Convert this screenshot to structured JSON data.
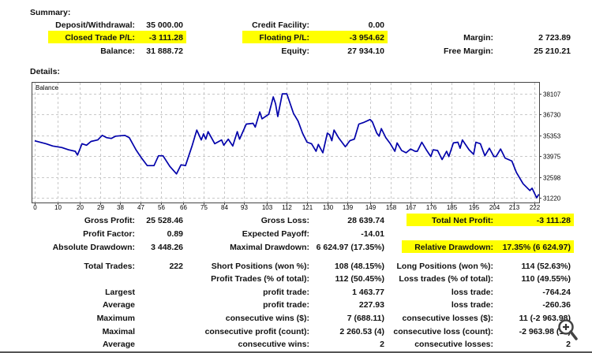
{
  "summary": {
    "title": "Summary:",
    "rows": [
      [
        {
          "label": "Deposit/Withdrawal:",
          "value": "35 000.00"
        },
        {
          "label": "Credit Facility:",
          "value": "0.00"
        },
        {
          "label": "",
          "value": ""
        }
      ],
      [
        {
          "label": "Closed Trade P/L:",
          "value": "-3 111.28",
          "highlight": true
        },
        {
          "label": "Floating P/L:",
          "value": "-3 954.62",
          "highlight": true
        },
        {
          "label": "Margin:",
          "value": "2 723.89"
        }
      ],
      [
        {
          "label": "Balance:",
          "value": "31 888.72"
        },
        {
          "label": "Equity:",
          "value": "27 934.10"
        },
        {
          "label": "Free Margin:",
          "value": "25 210.21"
        }
      ]
    ]
  },
  "details": {
    "title": "Details:",
    "rows": [
      [
        {
          "label": "Gross Profit:",
          "value": "25 528.46"
        },
        {
          "label": "Gross Loss:",
          "value": "28 639.74"
        },
        {
          "label": "Total Net Profit:",
          "value": "-3 111.28",
          "highlight": true
        }
      ],
      [
        {
          "label": "Profit Factor:",
          "value": "0.89"
        },
        {
          "label": "Expected Payoff:",
          "value": "-14.01"
        },
        {
          "label": "",
          "value": ""
        }
      ],
      [
        {
          "label": "Absolute Drawdown:",
          "value": "3 448.26"
        },
        {
          "label": "Maximal Drawdown:",
          "value": "6 624.97 (17.35%)"
        },
        {
          "label": "Relative Drawdown:",
          "value": "17.35% (6 624.97)",
          "highlight": true
        }
      ],
      [
        {
          "label": "Total Trades:",
          "value": "222"
        },
        {
          "label": "Short Positions (won %):",
          "value": "108 (48.15%)"
        },
        {
          "label": "Long Positions (won %):",
          "value": "114 (52.63%)"
        }
      ],
      [
        {
          "label": "",
          "value": ""
        },
        {
          "label": "Profit Trades (% of total):",
          "value": "112 (50.45%)"
        },
        {
          "label": "Loss trades (% of total):",
          "value": "110 (49.55%)"
        }
      ],
      [
        {
          "label": "Largest",
          "value": ""
        },
        {
          "label": "profit trade:",
          "value": "1 463.77"
        },
        {
          "label": "loss trade:",
          "value": "-764.24"
        }
      ],
      [
        {
          "label": "Average",
          "value": ""
        },
        {
          "label": "profit trade:",
          "value": "227.93"
        },
        {
          "label": "loss trade:",
          "value": "-260.36"
        }
      ],
      [
        {
          "label": "Maximum",
          "value": ""
        },
        {
          "label": "consecutive wins ($):",
          "value": "7 (688.11)"
        },
        {
          "label": "consecutive losses ($):",
          "value": "11 (-2 963.98)"
        }
      ],
      [
        {
          "label": "Maximal",
          "value": ""
        },
        {
          "label": "consecutive profit (count):",
          "value": "2 260.53 (4)"
        },
        {
          "label": "consecutive loss (count):",
          "value": "-2 963.98 (11)"
        }
      ],
      [
        {
          "label": "Average",
          "value": ""
        },
        {
          "label": "consecutive wins:",
          "value": "2"
        },
        {
          "label": "consecutive losses:",
          "value": "2"
        }
      ]
    ]
  },
  "chart_data": {
    "type": "line",
    "title": "Balance",
    "xlabel": "",
    "ylabel": "",
    "xlim": [
      0,
      224
    ],
    "ylim": [
      31220,
      38107
    ],
    "x_ticks": [
      0,
      10,
      20,
      29,
      38,
      47,
      56,
      66,
      75,
      84,
      93,
      103,
      112,
      121,
      130,
      139,
      149,
      158,
      167,
      176,
      185,
      195,
      204,
      213,
      222
    ],
    "y_ticks": [
      38107,
      36730,
      35353,
      33975,
      32598,
      31220
    ],
    "grid": true,
    "color": "#0000aa",
    "series": [
      {
        "name": "Balance",
        "x": [
          0,
          5,
          8,
          12,
          15,
          18,
          19,
          21,
          23,
          25,
          28,
          30,
          32,
          34,
          36,
          40,
          42,
          45,
          47,
          50,
          53,
          55,
          57,
          60,
          63,
          65,
          67,
          70,
          72,
          74,
          75,
          76,
          77,
          80,
          83,
          84,
          86,
          88,
          90,
          91,
          94,
          97,
          98,
          100,
          101,
          104,
          106,
          107,
          108,
          110,
          112,
          115,
          117,
          119,
          121,
          123,
          125,
          126,
          128,
          130,
          131,
          132,
          133,
          135,
          138,
          140,
          142,
          144,
          146,
          149,
          150,
          152,
          153,
          154,
          156,
          158,
          160,
          161,
          163,
          165,
          167,
          169,
          170,
          172,
          174,
          176,
          177,
          179,
          181,
          183,
          184,
          186,
          188,
          189,
          190,
          193,
          195,
          196,
          198,
          200,
          202,
          204,
          205,
          207,
          209,
          212,
          214,
          217,
          220,
          221,
          223,
          224
        ],
        "values": [
          34990,
          34800,
          34650,
          34550,
          34400,
          34300,
          34050,
          34800,
          34700,
          34950,
          35050,
          35350,
          35200,
          35150,
          35300,
          35350,
          35200,
          34400,
          33950,
          33350,
          33350,
          34000,
          34000,
          33300,
          32800,
          33400,
          33350,
          34700,
          35700,
          35050,
          35450,
          35100,
          35600,
          34800,
          35050,
          34700,
          35100,
          34650,
          35600,
          35100,
          36100,
          36150,
          35900,
          36900,
          36450,
          36750,
          37900,
          37450,
          36600,
          38100,
          38100,
          36800,
          36300,
          35500,
          34900,
          34800,
          34300,
          34750,
          34200,
          35500,
          35400,
          35000,
          35700,
          35200,
          34600,
          35000,
          35100,
          36100,
          36200,
          36400,
          36250,
          35500,
          35300,
          35800,
          35200,
          34800,
          34300,
          34850,
          34350,
          34200,
          34450,
          34300,
          34300,
          34900,
          34400,
          33950,
          34400,
          34350,
          33750,
          34300,
          33950,
          34850,
          34900,
          34500,
          35050,
          34400,
          34100,
          34900,
          34800,
          34000,
          34500,
          33950,
          33950,
          34450,
          33850,
          33650,
          32900,
          32150,
          31700,
          31850,
          31220,
          31450
        ]
      }
    ]
  }
}
